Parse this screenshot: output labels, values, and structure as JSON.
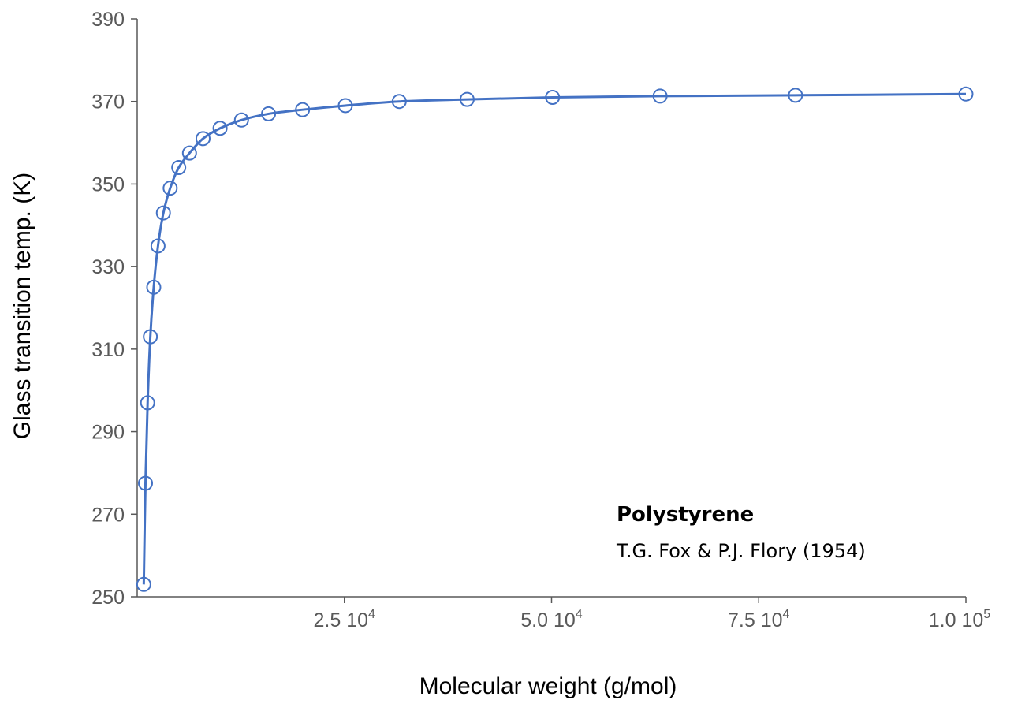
{
  "chart_data": {
    "type": "scatter",
    "xlabel": "Molecular weight (g/mol)",
    "ylabel": "Glass transition temp. (K)",
    "xlim": [
      0,
      100000
    ],
    "ylim": [
      250,
      390
    ],
    "y_ticks": [
      250,
      270,
      290,
      310,
      330,
      350,
      370,
      390
    ],
    "x_ticks": [
      {
        "value": 25000,
        "mantissa": "2.5 10",
        "exponent": "4"
      },
      {
        "value": 50000,
        "mantissa": "5.0 10",
        "exponent": "4"
      },
      {
        "value": 75000,
        "mantissa": "7.5 10",
        "exponent": "4"
      },
      {
        "value": 100000,
        "mantissa": "1.0 10",
        "exponent": "5"
      }
    ],
    "grid": false,
    "annotation": {
      "title": "Polystyrene",
      "subtitle": "T.G. Fox & P.J. Flory (1954)"
    },
    "series": [
      {
        "color": "#4472c4",
        "marker": "open-circle",
        "line": "smooth",
        "x": [
          794,
          1000,
          1259,
          1585,
          1995,
          2512,
          3162,
          3981,
          5012,
          6310,
          7943,
          10000,
          12589,
          15849,
          19953,
          25119,
          31623,
          39811,
          50119,
          63096,
          79433,
          100000
        ],
        "y": [
          253,
          277.5,
          297,
          313,
          325,
          335,
          343,
          349,
          354,
          357.5,
          361,
          363.5,
          365.5,
          367,
          368,
          369,
          370,
          370.5,
          371,
          371.3,
          371.5,
          371.8
        ]
      }
    ]
  }
}
